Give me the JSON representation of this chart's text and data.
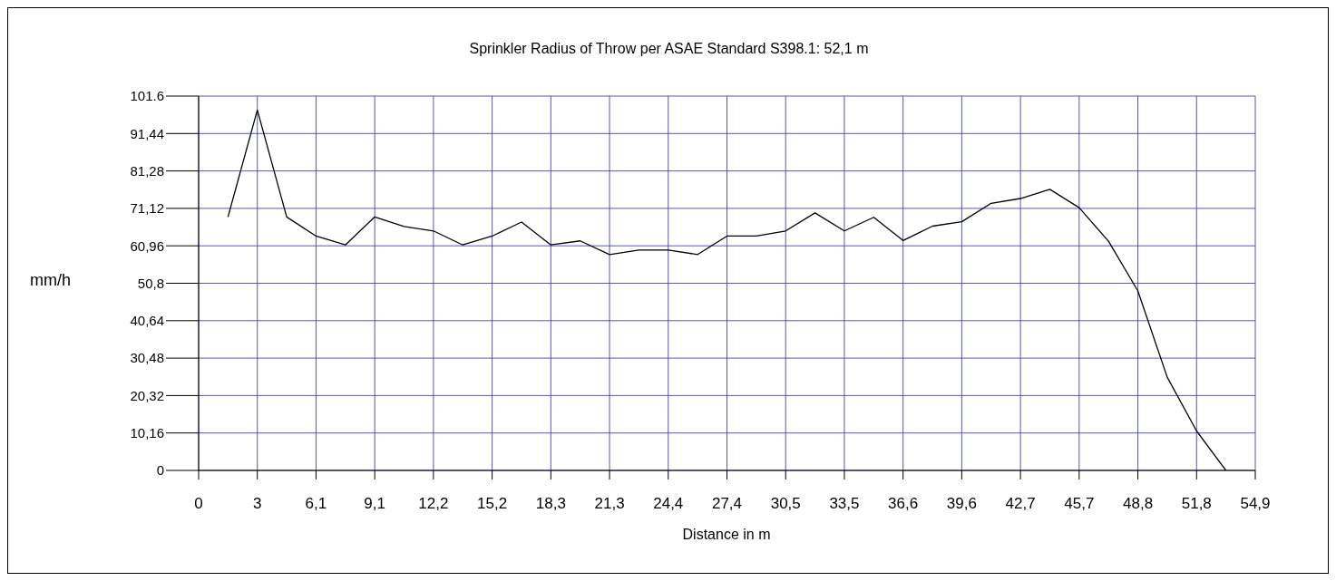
{
  "chart_data": {
    "type": "line",
    "title": "Sprinkler Radius of Throw per ASAE Standard S398.1:  52,1 m",
    "xlabel": "Distance in m",
    "ylabel": "mm/h",
    "x": [
      1.524,
      3.048,
      4.572,
      6.096,
      7.62,
      9.144,
      10.668,
      12.192,
      13.716,
      15.24,
      16.764,
      18.288,
      19.812,
      21.336,
      22.86,
      24.384,
      25.908,
      27.432,
      28.956,
      30.48,
      32.004,
      33.528,
      35.052,
      36.576,
      38.1,
      39.624,
      41.148,
      42.672,
      44.196,
      45.72,
      47.244,
      48.768,
      50.292,
      51.816,
      53.34
    ],
    "series": [
      {
        "color": "#000000",
        "values": [
          68.8,
          97.8,
          68.8,
          63.6,
          61.2,
          68.8,
          66.2,
          65.0,
          61.2,
          63.6,
          67.4,
          61.2,
          62.3,
          58.6,
          59.8,
          59.8,
          58.6,
          63.6,
          63.6,
          65.0,
          69.9,
          65.0,
          68.7,
          62.4,
          66.3,
          67.5,
          72.5,
          73.8,
          76.3,
          71.3,
          62.2,
          48.7,
          25.3,
          10.7,
          0
        ]
      }
    ],
    "xlim": [
      0,
      54.864
    ],
    "ylim": [
      0,
      101.6
    ],
    "xticks": [
      0,
      {
        "value": 3.048,
        "label": "3"
      },
      {
        "value": 6.096,
        "label": "6,1"
      },
      {
        "value": 9.144,
        "label": "9,1"
      },
      {
        "value": 12.192,
        "label": "12,2"
      },
      {
        "value": 15.24,
        "label": "15,2"
      },
      {
        "value": 18.288,
        "label": "18,3"
      },
      {
        "value": 21.336,
        "label": "21,3"
      },
      {
        "value": 24.384,
        "label": "24,4"
      },
      {
        "value": 27.432,
        "label": "27,4"
      },
      {
        "value": 30.48,
        "label": "30,5"
      },
      {
        "value": 33.528,
        "label": "33,5"
      },
      {
        "value": 36.576,
        "label": "36,6"
      },
      {
        "value": 39.624,
        "label": "39,6"
      },
      {
        "value": 42.672,
        "label": "42,7"
      },
      {
        "value": 45.72,
        "label": "45,7"
      },
      {
        "value": 48.768,
        "label": "48,8"
      },
      {
        "value": 51.816,
        "label": "51,8"
      },
      {
        "value": 54.864,
        "label": "54,9"
      }
    ],
    "yticks": [
      0,
      {
        "value": 10.16,
        "label": "10,16"
      },
      {
        "value": 20.32,
        "label": "20,32"
      },
      {
        "value": 30.48,
        "label": "30,48"
      },
      {
        "value": 40.64,
        "label": "40,64"
      },
      {
        "value": 50.8,
        "label": "50,8"
      },
      {
        "value": 60.96,
        "label": "60,96"
      },
      {
        "value": 71.12,
        "label": "71,12"
      },
      {
        "value": 81.28,
        "label": "81,28"
      },
      {
        "value": 91.44,
        "label": "91,44"
      },
      101.6
    ],
    "grid": true,
    "legend": false,
    "marker": "none",
    "line_style": "solid"
  }
}
